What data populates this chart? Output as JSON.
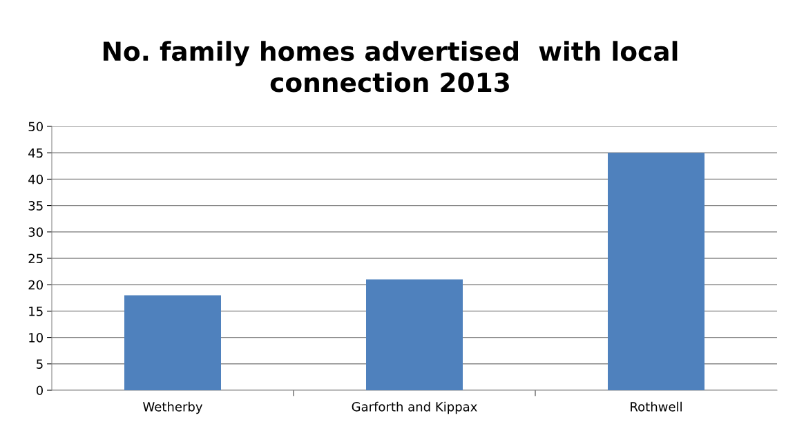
{
  "chart_data": {
    "type": "bar",
    "title": "No. family homes advertised  with local\nconnection 2013",
    "categories": [
      "Wetherby",
      "Garforth and Kippax",
      "Rothwell"
    ],
    "values": [
      18,
      21,
      45
    ],
    "color": "#4f81bd",
    "ylim": [
      0,
      50
    ],
    "yticks": [
      0,
      5,
      10,
      15,
      20,
      25,
      30,
      35,
      40,
      45,
      50
    ],
    "grid": "y"
  }
}
